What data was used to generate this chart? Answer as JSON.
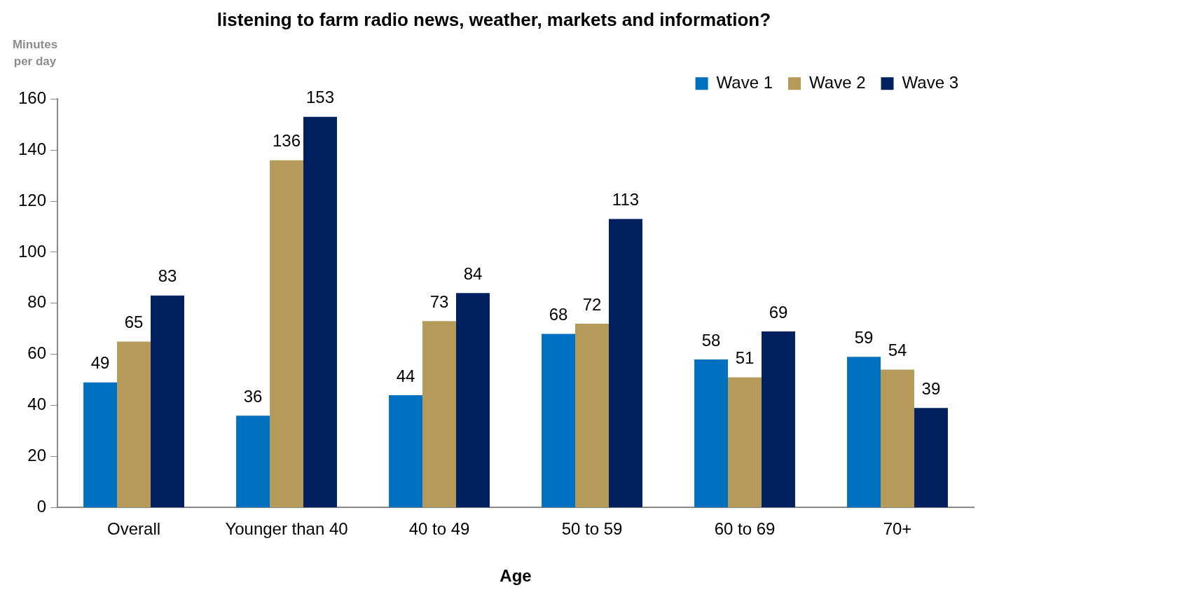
{
  "chart_data": {
    "type": "bar",
    "title": "listening to farm radio news, weather, markets and information?",
    "ylabel": "Minutes per day",
    "xlabel": "Age",
    "categories": [
      "Overall",
      "Younger than 40",
      "40 to 49",
      "50 to 59",
      "60 to 69",
      "70+"
    ],
    "series": [
      {
        "name": "Wave 1",
        "color": "#0070c0",
        "values": [
          49,
          36,
          44,
          68,
          58,
          59
        ]
      },
      {
        "name": "Wave 2",
        "color": "#b59a5a",
        "values": [
          65,
          136,
          73,
          72,
          51,
          54
        ]
      },
      {
        "name": "Wave 3",
        "color": "#002060",
        "values": [
          83,
          153,
          84,
          113,
          69,
          39
        ]
      }
    ],
    "ylim": [
      0,
      160
    ],
    "yticks": [
      0,
      20,
      40,
      60,
      80,
      100,
      120,
      140,
      160
    ],
    "grid": false,
    "legend": "top right",
    "data_labels": true
  }
}
